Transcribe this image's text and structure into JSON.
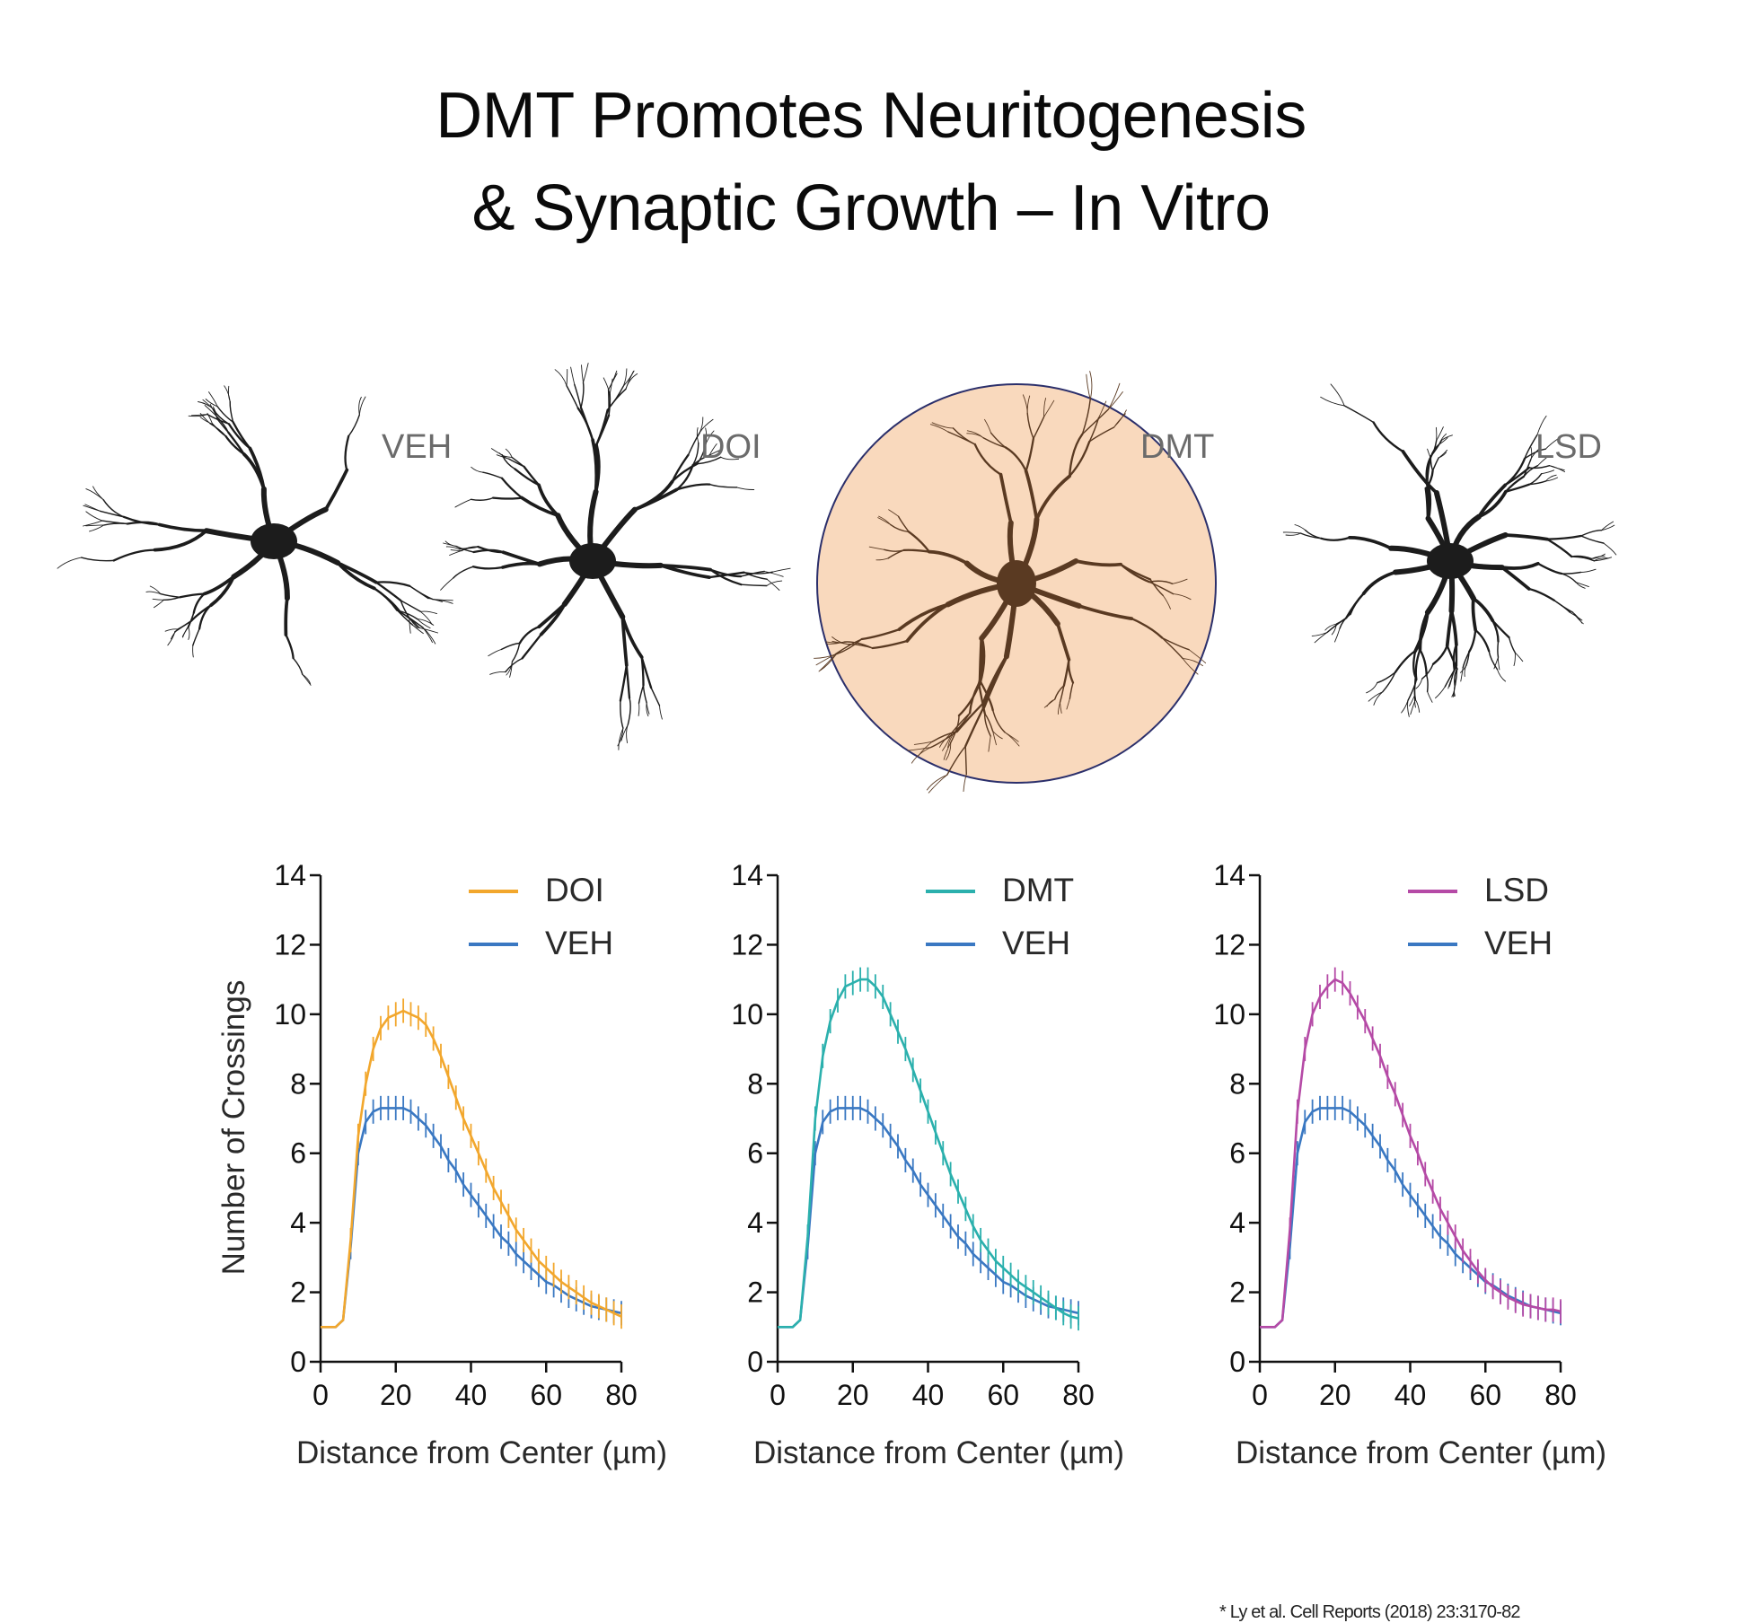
{
  "title": {
    "line1": "DMT Promotes Neuritogenesis",
    "line2": "& Synaptic Growth – In Vitro"
  },
  "neurons": [
    {
      "label": "VEH",
      "highlight": false
    },
    {
      "label": "DOI",
      "highlight": false
    },
    {
      "label": "DMT",
      "highlight": true
    },
    {
      "label": "LSD",
      "highlight": false
    }
  ],
  "highlight_colors": {
    "fill": "#f9d9bd",
    "stroke": "#2b2f6b",
    "neuron": "#5a3a22",
    "neuron_default": "#1c1c1c"
  },
  "chart_data": [
    {
      "type": "line",
      "xlabel": "Distance from Center (µm)",
      "ylabel": "Number of Crossings",
      "xlim": [
        0,
        80
      ],
      "ylim": [
        0,
        14
      ],
      "xticks": [
        0,
        20,
        40,
        60,
        80
      ],
      "yticks": [
        0,
        2,
        4,
        6,
        8,
        10,
        12,
        14
      ],
      "legend": "top-right",
      "x": [
        0,
        2,
        4,
        6,
        8,
        10,
        12,
        14,
        16,
        18,
        20,
        22,
        24,
        26,
        28,
        30,
        32,
        34,
        36,
        38,
        40,
        42,
        44,
        46,
        48,
        50,
        52,
        54,
        56,
        58,
        60,
        62,
        64,
        66,
        68,
        70,
        72,
        74,
        76,
        78,
        80
      ],
      "series": [
        {
          "name": "DOI",
          "color": "#f2a72d",
          "values": [
            1.0,
            1.0,
            1.0,
            1.2,
            3.5,
            6.5,
            8.0,
            9.0,
            9.6,
            9.9,
            10.0,
            10.1,
            10.0,
            9.9,
            9.7,
            9.3,
            8.8,
            8.2,
            7.6,
            7.0,
            6.5,
            6.0,
            5.5,
            5.0,
            4.6,
            4.2,
            3.8,
            3.5,
            3.2,
            2.9,
            2.7,
            2.5,
            2.3,
            2.15,
            2.0,
            1.85,
            1.7,
            1.6,
            1.5,
            1.4,
            1.3
          ]
        },
        {
          "name": "VEH",
          "color": "#3a78c2",
          "values": [
            1.0,
            1.0,
            1.0,
            1.2,
            3.3,
            6.0,
            6.9,
            7.2,
            7.3,
            7.3,
            7.3,
            7.3,
            7.2,
            7.0,
            6.8,
            6.5,
            6.2,
            5.8,
            5.5,
            5.1,
            4.8,
            4.5,
            4.2,
            3.9,
            3.6,
            3.4,
            3.1,
            2.9,
            2.7,
            2.5,
            2.3,
            2.2,
            2.05,
            1.9,
            1.8,
            1.7,
            1.6,
            1.55,
            1.5,
            1.45,
            1.4
          ]
        }
      ]
    },
    {
      "type": "line",
      "xlabel": "Distance from Center (µm)",
      "ylabel": "",
      "xlim": [
        0,
        80
      ],
      "ylim": [
        0,
        14
      ],
      "xticks": [
        0,
        20,
        40,
        60,
        80
      ],
      "yticks": [
        0,
        2,
        4,
        6,
        8,
        10,
        12,
        14
      ],
      "legend": "top-right",
      "x": [
        0,
        2,
        4,
        6,
        8,
        10,
        12,
        14,
        16,
        18,
        20,
        22,
        24,
        26,
        28,
        30,
        32,
        34,
        36,
        38,
        40,
        42,
        44,
        46,
        48,
        50,
        52,
        54,
        56,
        58,
        60,
        62,
        64,
        66,
        68,
        70,
        72,
        74,
        76,
        78,
        80
      ],
      "series": [
        {
          "name": "DMT",
          "color": "#2bb0ad",
          "values": [
            1.0,
            1.0,
            1.0,
            1.2,
            3.6,
            7.0,
            8.8,
            9.8,
            10.4,
            10.8,
            10.9,
            11.0,
            11.0,
            10.8,
            10.5,
            10.0,
            9.5,
            9.0,
            8.4,
            7.8,
            7.2,
            6.6,
            6.0,
            5.4,
            4.9,
            4.4,
            3.9,
            3.5,
            3.2,
            2.9,
            2.7,
            2.5,
            2.3,
            2.15,
            2.0,
            1.85,
            1.7,
            1.55,
            1.4,
            1.3,
            1.25
          ]
        },
        {
          "name": "VEH",
          "color": "#3a78c2",
          "values": [
            1.0,
            1.0,
            1.0,
            1.2,
            3.3,
            6.0,
            6.9,
            7.2,
            7.3,
            7.3,
            7.3,
            7.3,
            7.2,
            7.0,
            6.8,
            6.5,
            6.2,
            5.8,
            5.5,
            5.1,
            4.8,
            4.5,
            4.2,
            3.9,
            3.6,
            3.4,
            3.1,
            2.9,
            2.7,
            2.5,
            2.3,
            2.2,
            2.05,
            1.9,
            1.8,
            1.7,
            1.6,
            1.55,
            1.5,
            1.45,
            1.4
          ]
        }
      ]
    },
    {
      "type": "line",
      "xlabel": "Distance from Center (µm)",
      "ylabel": "",
      "xlim": [
        0,
        80
      ],
      "ylim": [
        0,
        14
      ],
      "xticks": [
        0,
        20,
        40,
        60,
        80
      ],
      "yticks": [
        0,
        2,
        4,
        6,
        8,
        10,
        12,
        14
      ],
      "legend": "top-right",
      "x": [
        0,
        2,
        4,
        6,
        8,
        10,
        12,
        14,
        16,
        18,
        20,
        22,
        24,
        26,
        28,
        30,
        32,
        34,
        36,
        38,
        40,
        42,
        44,
        46,
        48,
        50,
        52,
        54,
        56,
        58,
        60,
        62,
        64,
        66,
        68,
        70,
        72,
        74,
        76,
        78,
        80
      ],
      "series": [
        {
          "name": "LSD",
          "color": "#b54aa6",
          "values": [
            1.0,
            1.0,
            1.0,
            1.2,
            3.8,
            7.2,
            9.0,
            10.0,
            10.5,
            10.8,
            11.0,
            10.9,
            10.6,
            10.2,
            9.8,
            9.3,
            8.8,
            8.2,
            7.7,
            7.1,
            6.5,
            6.0,
            5.4,
            4.9,
            4.4,
            4.0,
            3.6,
            3.2,
            2.9,
            2.6,
            2.35,
            2.15,
            2.0,
            1.85,
            1.75,
            1.65,
            1.6,
            1.55,
            1.5,
            1.5,
            1.45
          ]
        },
        {
          "name": "VEH",
          "color": "#3a78c2",
          "values": [
            1.0,
            1.0,
            1.0,
            1.2,
            3.3,
            6.0,
            6.9,
            7.2,
            7.3,
            7.3,
            7.3,
            7.3,
            7.2,
            7.0,
            6.8,
            6.5,
            6.2,
            5.8,
            5.5,
            5.1,
            4.8,
            4.5,
            4.2,
            3.9,
            3.6,
            3.4,
            3.1,
            2.9,
            2.7,
            2.5,
            2.3,
            2.2,
            2.05,
            1.9,
            1.8,
            1.7,
            1.6,
            1.55,
            1.5,
            1.45,
            1.4
          ]
        }
      ]
    }
  ],
  "citation": "* Ly et al. Cell Reports (2018) 23:3170-82"
}
